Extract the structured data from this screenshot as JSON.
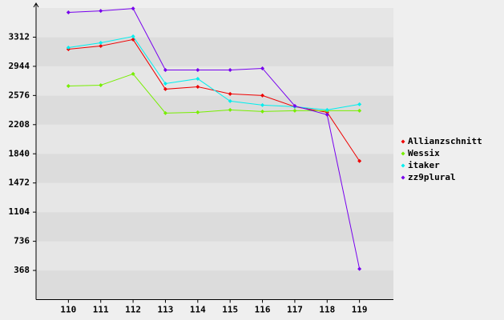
{
  "chart_data": {
    "type": "line",
    "x": [
      110,
      111,
      112,
      113,
      114,
      115,
      116,
      117,
      118,
      119
    ],
    "xlim": [
      109,
      120
    ],
    "xticks": [
      110,
      111,
      112,
      113,
      114,
      115,
      116,
      117,
      118,
      119
    ],
    "ylim": [
      0,
      3680
    ],
    "yticks": [
      368,
      736,
      1104,
      1472,
      1840,
      2208,
      2576,
      2944,
      3312
    ],
    "grid": true,
    "legend": "right",
    "series": [
      {
        "name": "Allianzschnitt",
        "color": "#ee0000",
        "values": [
          3160,
          3200,
          3282,
          2656,
          2686,
          2596,
          2576,
          2434,
          2364,
          1749
        ]
      },
      {
        "name": "Wessix",
        "color": "#77ee00",
        "values": [
          2696,
          2706,
          2848,
          2354,
          2364,
          2394,
          2374,
          2384,
          2384,
          2384
        ]
      },
      {
        "name": "itaker",
        "color": "#00eeee",
        "values": [
          3180,
          3241,
          3321,
          2726,
          2787,
          2505,
          2455,
          2434,
          2394,
          2465
        ]
      },
      {
        "name": "zz9plural",
        "color": "#7700ee",
        "values": [
          3624,
          3644,
          3674,
          2898,
          2898,
          2898,
          2918,
          2444,
          2333,
          388
        ]
      }
    ]
  }
}
